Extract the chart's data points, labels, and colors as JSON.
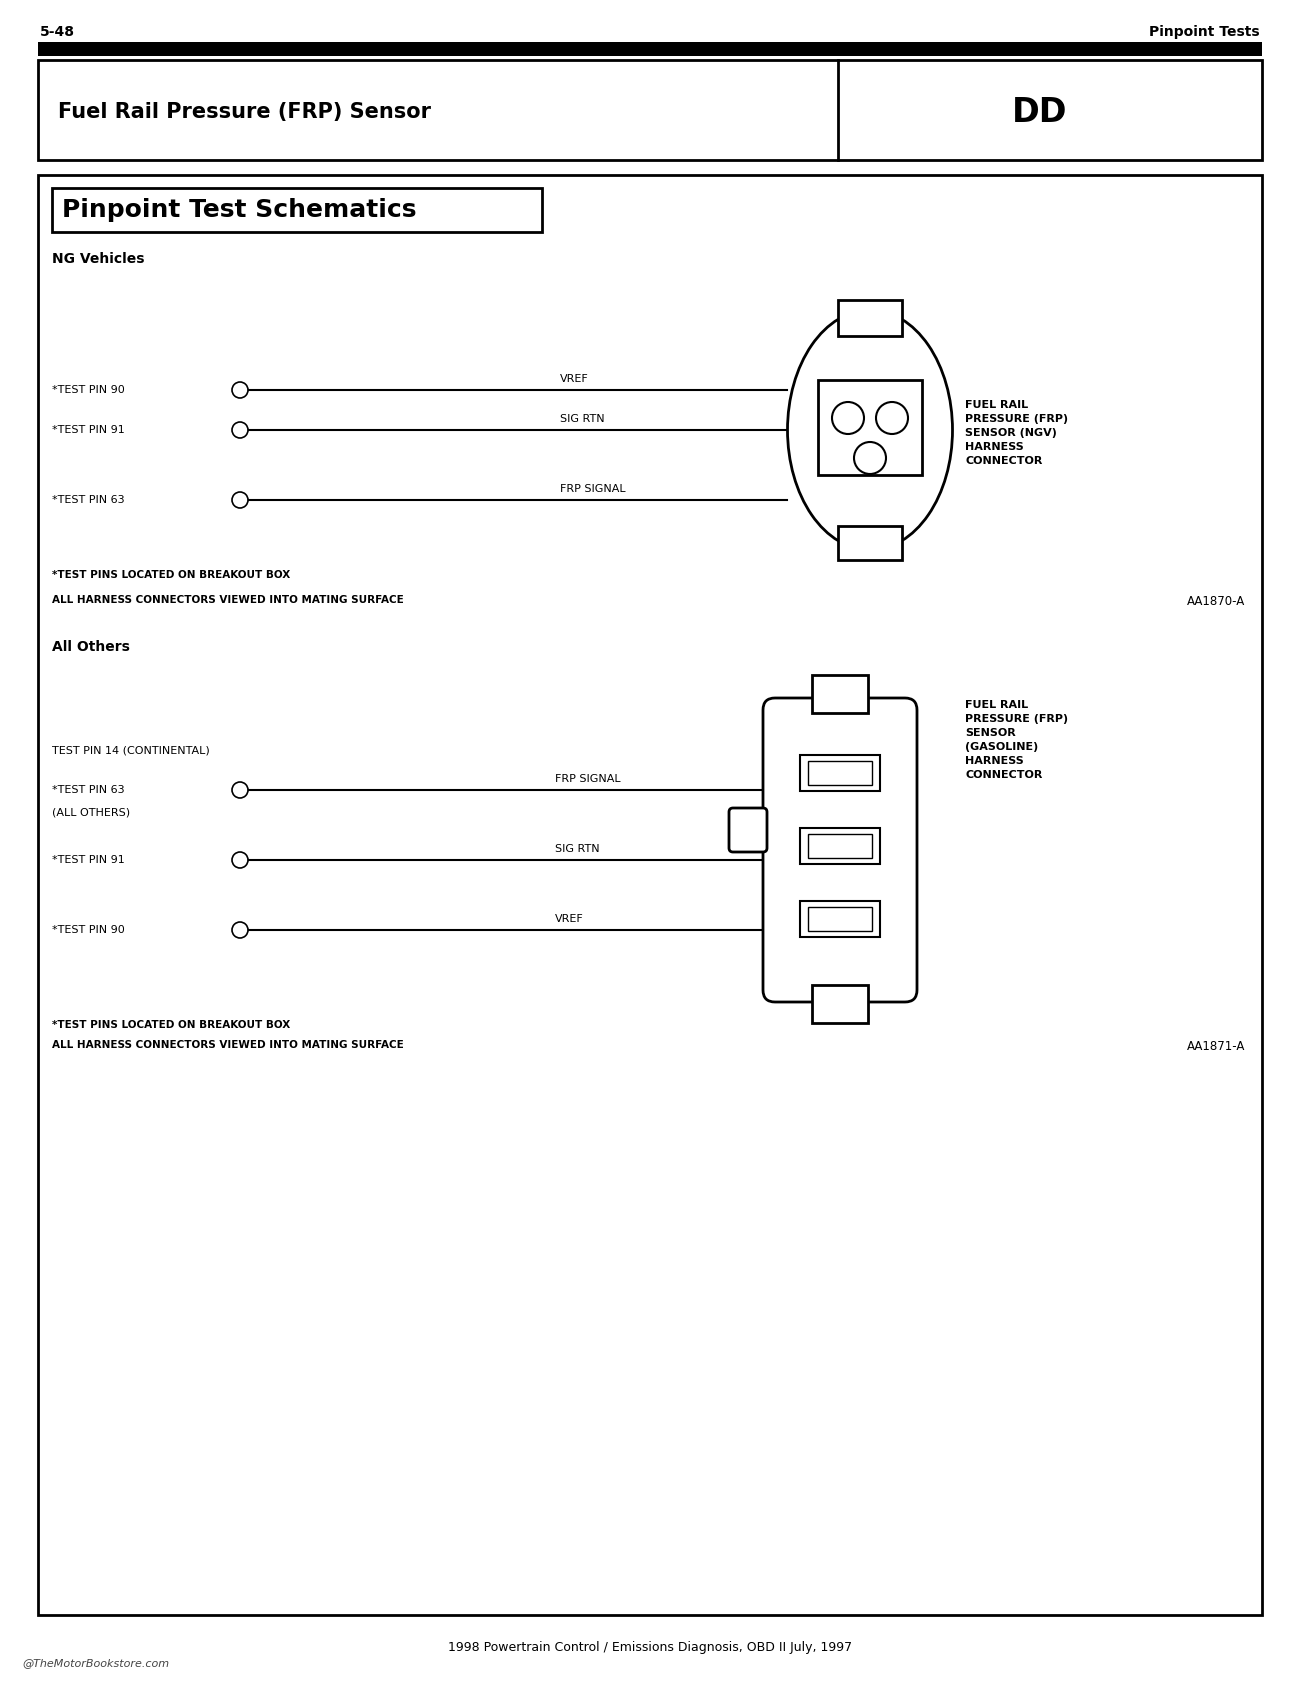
{
  "page_number": "5-48",
  "page_header_right": "Pinpoint Tests",
  "header_title_left": "Fuel Rail Pressure (FRP) Sensor",
  "header_title_right": "DD",
  "section_title": "Pinpoint Test Schematics",
  "subsection1": "NG Vehicles",
  "subsection2": "All Others",
  "ngv_connector_label": "FUEL RAIL\nPRESSURE (FRP)\nSENSOR (NGV)\nHARNESS\nCONNECTOR",
  "ngv_footnote1": "*TEST PINS LOCATED ON BREAKOUT BOX",
  "ngv_footnote2": "ALL HARNESS CONNECTORS VIEWED INTO MATING SURFACE",
  "ngv_ref": "AA1870-A",
  "gasoline_connector_label": "FUEL RAIL\nPRESSURE (FRP)\nSENSOR\n(GASOLINE)\nHARNESS\nCONNECTOR",
  "gasoline_footnote1": "*TEST PINS LOCATED ON BREAKOUT BOX",
  "gasoline_footnote2": "ALL HARNESS CONNECTORS VIEWED INTO MATING SURFACE",
  "gasoline_ref": "AA1871-A",
  "footer": "1998 Powertrain Control / Emissions Diagnosis, OBD II July, 1997",
  "watermark": "@TheMotorBookstore.com",
  "bg_color": "#ffffff"
}
